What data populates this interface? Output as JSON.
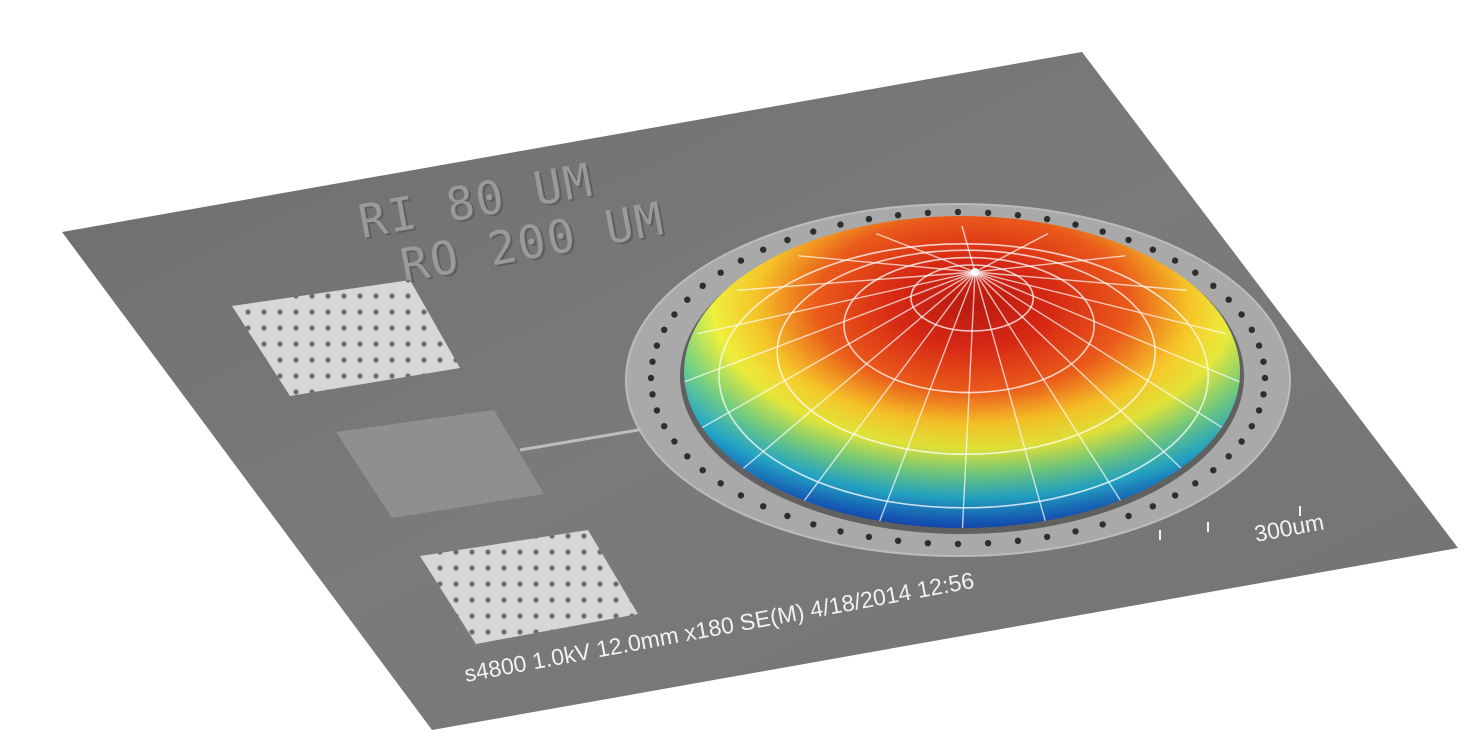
{
  "image": {
    "description_free": true,
    "colors": {
      "background": "#ffffff",
      "substrate": "#7a7a7a",
      "ring": "#a8a8a8",
      "dome_top": "#d62814",
      "dome_mid": "#f5e83a",
      "dome_edge": "#1a2fd6"
    }
  },
  "labels": {
    "line1": "RI 80 UM",
    "line2": "RO 200 UM"
  },
  "sem_bar": {
    "info": "s4800 1.0kV 12.0mm x180 SE(M) 4/18/2014 12:56",
    "scale": "300um"
  }
}
